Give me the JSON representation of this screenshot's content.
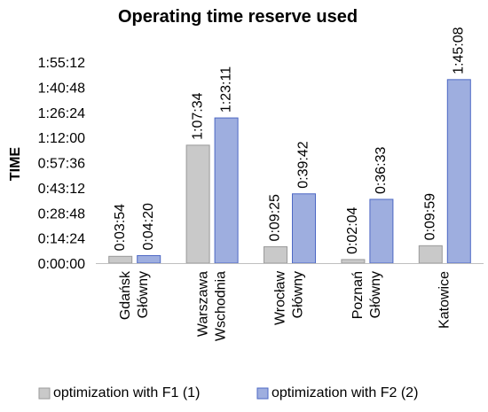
{
  "chart_data": {
    "type": "bar",
    "title": "Operating time reserve used",
    "ylabel": "TIME",
    "xlabel": "",
    "categories": [
      [
        "Gdańsk",
        "Główny"
      ],
      [
        "Warszawa",
        "Wschodnia"
      ],
      [
        "Wrocław",
        "Główny"
      ],
      [
        "Poznań",
        "Główny"
      ],
      [
        "Katowice"
      ]
    ],
    "y_unit": "seconds",
    "ylim": [
      0,
      6912
    ],
    "y_ticks": [
      0,
      864,
      1728,
      2592,
      3456,
      4320,
      5184,
      6048,
      6912
    ],
    "y_tick_labels": [
      "0:00:00",
      "0:14:24",
      "0:28:48",
      "0:43:12",
      "0:57:36",
      "1:12:00",
      "1:26:24",
      "1:40:48",
      "1:55:12"
    ],
    "grid": false,
    "legend_position": "bottom",
    "series": [
      {
        "name": "optimization with F1 (1)",
        "color": "#c9c9c9",
        "stroke": "#9a9a9a",
        "values": [
          234,
          4054,
          565,
          124,
          599
        ],
        "labels": [
          "0:03:54",
          "1:07:34",
          "0:09:25",
          "0:02:04",
          "0:09:59"
        ]
      },
      {
        "name": "optimization with F2 (2)",
        "color": "#9eaedf",
        "stroke": "#4d68c4",
        "values": [
          260,
          4991,
          2382,
          2193,
          6308
        ],
        "labels": [
          "0:04:20",
          "1:23:11",
          "0:39:42",
          "0:36:33",
          "1:45:08"
        ]
      }
    ]
  }
}
